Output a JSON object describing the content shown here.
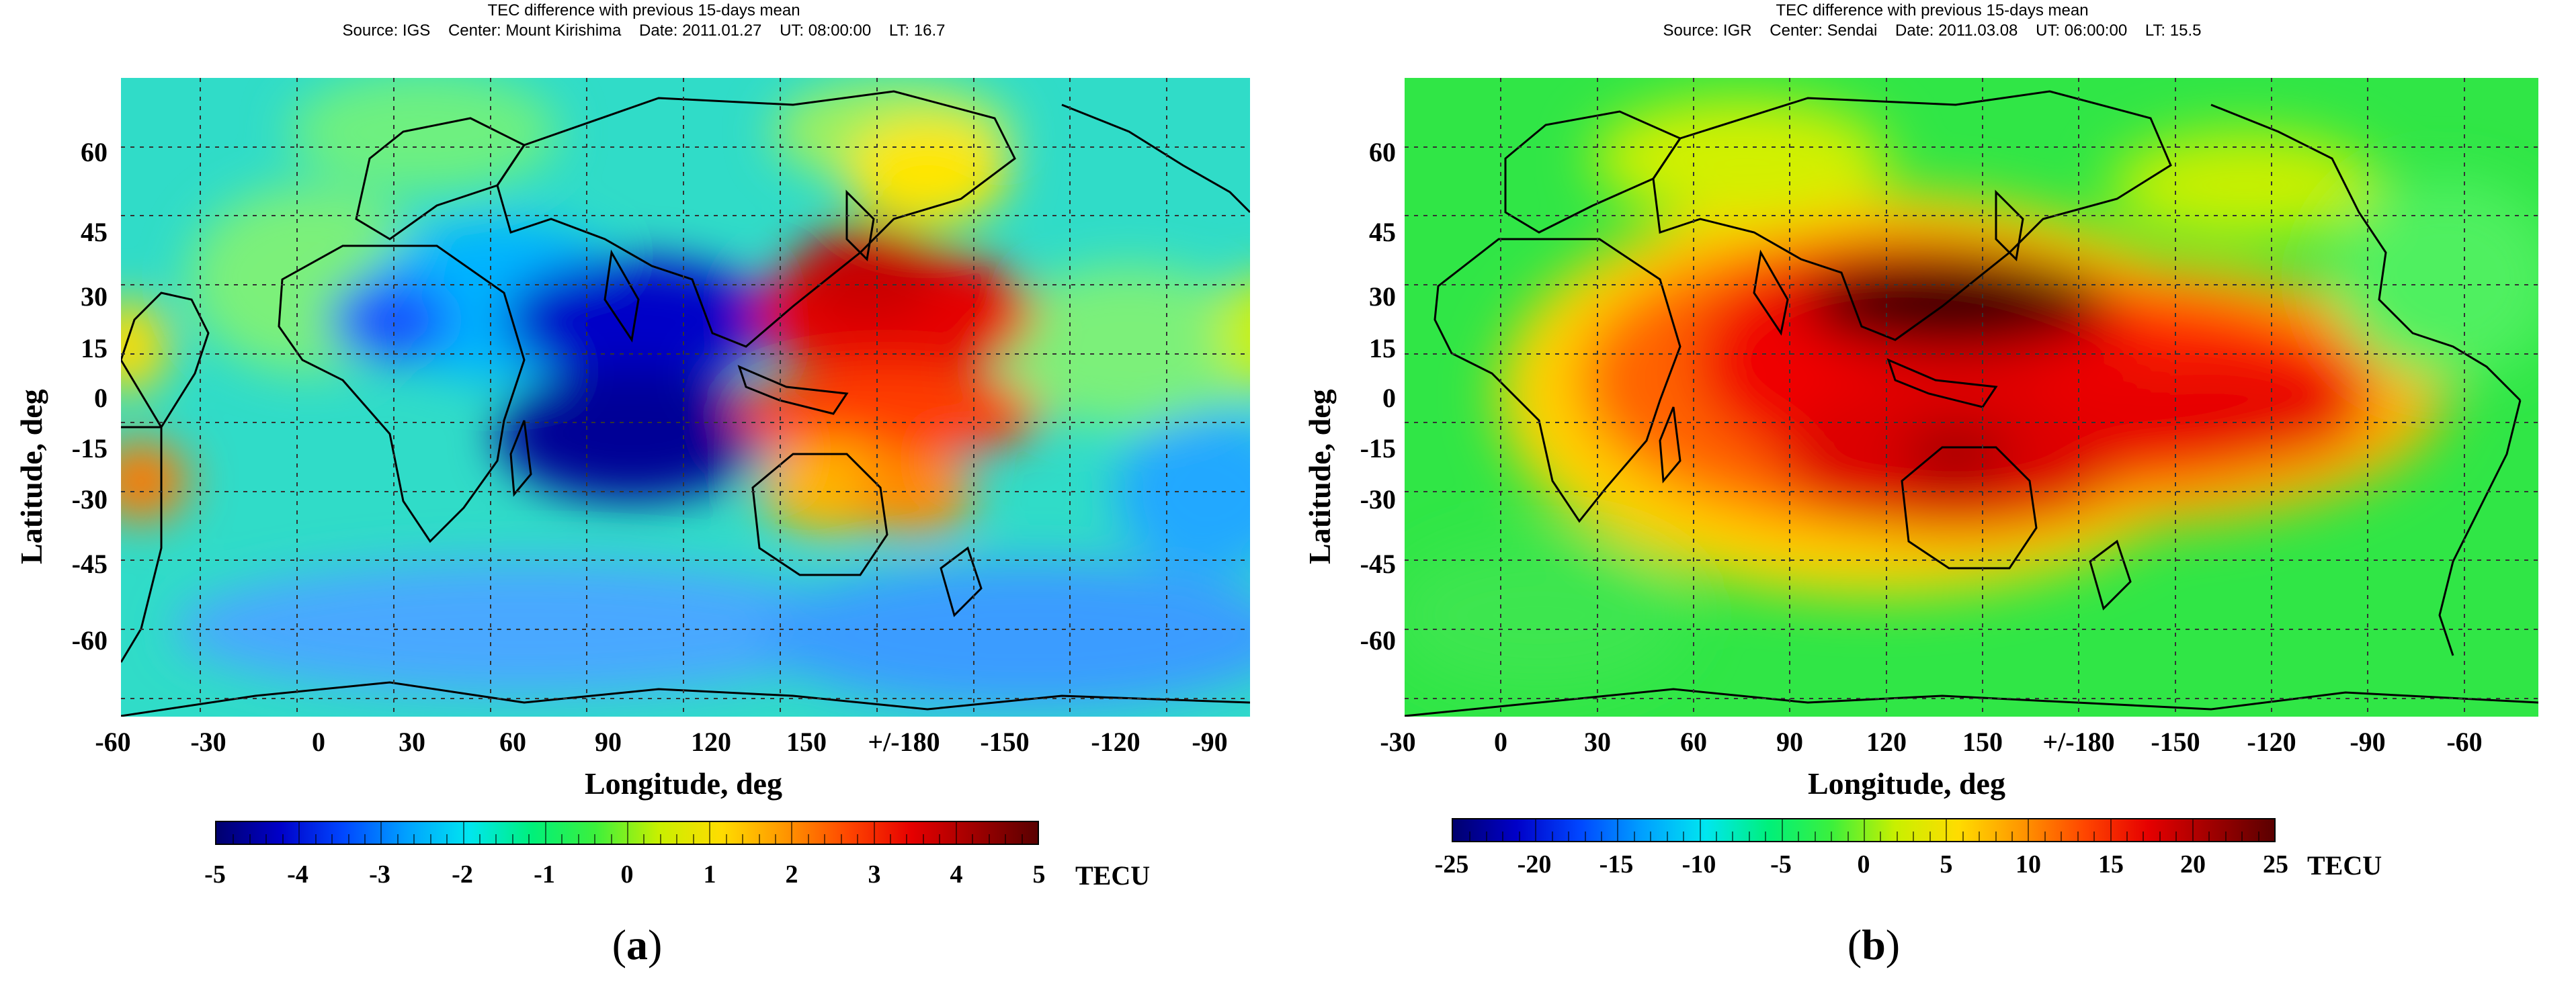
{
  "panels": [
    {
      "id": "a",
      "header_line1": "TEC difference with previous 15-days mean",
      "header_line2": "Source: IGS    Center: Mount Kirishima    Date: 2011.01.27    UT: 08:00:00    LT: 16.7",
      "xlabel": "Longitude, deg",
      "ylabel": "Latitude, deg",
      "x_ticks": [
        "-60",
        "-30",
        "0",
        "30",
        "60",
        "90",
        "120",
        "150",
        "+/-180",
        "-150",
        "-120",
        "-90"
      ],
      "y_ticks": [
        "60",
        "45",
        "30",
        "15",
        "0",
        "-15",
        "-30",
        "-45",
        "-60"
      ],
      "colorbar_ticks": [
        "-5",
        "-4",
        "-3",
        "-2",
        "-1",
        "0",
        "1",
        "2",
        "3",
        "4",
        "5"
      ],
      "colorbar_unit": "TECU",
      "colorbar_range": [
        -5,
        5
      ],
      "panel_label_open": "(",
      "panel_label_letter": "a",
      "panel_label_close": ")"
    },
    {
      "id": "b",
      "header_line1": "TEC difference with previous 15-days mean",
      "header_line2": "Source: IGR    Center: Sendai    Date: 2011.03.08    UT: 06:00:00    LT: 15.5",
      "xlabel": "Longitude, deg",
      "ylabel": "Latitude, deg",
      "x_ticks": [
        "-30",
        "0",
        "30",
        "60",
        "90",
        "120",
        "150",
        "+/-180",
        "-150",
        "-120",
        "-90",
        "-60"
      ],
      "y_ticks": [
        "60",
        "45",
        "30",
        "15",
        "0",
        "-15",
        "-30",
        "-45",
        "-60"
      ],
      "colorbar_ticks": [
        "-25",
        "-20",
        "-15",
        "-10",
        "-5",
        "0",
        "5",
        "10",
        "15",
        "20",
        "25"
      ],
      "colorbar_unit": "TECU",
      "colorbar_range": [
        -25,
        25
      ],
      "panel_label_open": "(",
      "panel_label_letter": "b",
      "panel_label_close": ")"
    }
  ],
  "colormap": [
    "#00006e",
    "#0000c8",
    "#0046ff",
    "#00a0ff",
    "#00e6f0",
    "#00f07a",
    "#3cf03c",
    "#c8f000",
    "#ffdc00",
    "#ff9600",
    "#ff4600",
    "#e60000",
    "#a00000",
    "#5a0000"
  ],
  "colors": {
    "coastline": "#000000",
    "grid": "#333333",
    "map_a_background": "#30dcc8",
    "map_b_background": "#30e646"
  }
}
